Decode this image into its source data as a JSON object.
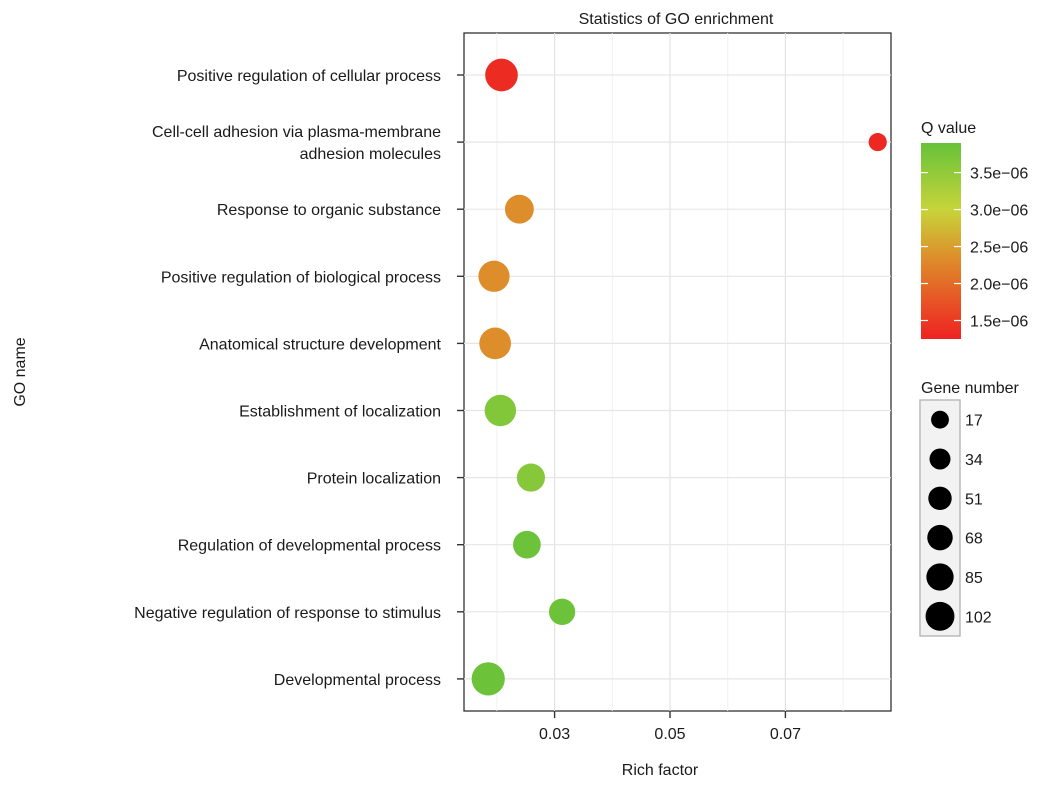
{
  "chart_data": {
    "type": "scatter",
    "title": "Statistics of GO enrichment",
    "xlabel": "Rich factor",
    "ylabel": "GO name",
    "xlim": [
      0.0143,
      0.0883
    ],
    "xticks": [
      {
        "value": 0.03,
        "label": "0.03"
      },
      {
        "value": 0.05,
        "label": "0.05"
      },
      {
        "value": 0.07,
        "label": "0.07"
      }
    ],
    "grid": true,
    "categories": [
      [
        "Positive regulation of cellular process"
      ],
      [
        "Cell-cell adhesion via plasma-membrane",
        "adhesion molecules"
      ],
      [
        "Response to organic substance"
      ],
      [
        "Positive regulation of biological process"
      ],
      [
        "Anatomical structure development"
      ],
      [
        "Establishment of localization"
      ],
      [
        "Protein localization"
      ],
      [
        "Regulation of developmental process"
      ],
      [
        "Negative regulation of response to stimulus"
      ],
      [
        "Developmental process"
      ]
    ],
    "points": [
      {
        "rich_factor": 0.0208,
        "gene_number": 90,
        "q_value": 1.35e-06
      },
      {
        "rich_factor": 0.086,
        "gene_number": 8,
        "q_value": 1.3e-06
      },
      {
        "rich_factor": 0.0239,
        "gene_number": 60,
        "q_value": 2.35e-06
      },
      {
        "rich_factor": 0.0195,
        "gene_number": 78,
        "q_value": 2.35e-06
      },
      {
        "rich_factor": 0.0197,
        "gene_number": 82,
        "q_value": 2.35e-06
      },
      {
        "rich_factor": 0.0206,
        "gene_number": 80,
        "q_value": 3.65e-06
      },
      {
        "rich_factor": 0.0259,
        "gene_number": 55,
        "q_value": 3.6e-06
      },
      {
        "rich_factor": 0.0252,
        "gene_number": 52,
        "q_value": 3.85e-06
      },
      {
        "rich_factor": 0.0313,
        "gene_number": 43,
        "q_value": 3.85e-06
      },
      {
        "rich_factor": 0.0185,
        "gene_number": 95,
        "q_value": 3.85e-06
      }
    ],
    "color_legend": {
      "title": "Q value",
      "min": 1.25e-06,
      "max": 3.9e-06,
      "ticks": [
        {
          "value": 3.5e-06,
          "label": "3.5e−06"
        },
        {
          "value": 3e-06,
          "label": "3.0e−06"
        },
        {
          "value": 2.5e-06,
          "label": "2.5e−06"
        },
        {
          "value": 2e-06,
          "label": "2.0e−06"
        },
        {
          "value": 1.5e-06,
          "label": "1.5e−06"
        }
      ],
      "colors": [
        "#ee2222",
        "#de8a2a",
        "#c7d43a",
        "#67c23a"
      ]
    },
    "size_legend": {
      "title": "Gene number",
      "items": [
        {
          "value": 17,
          "label": "17"
        },
        {
          "value": 34,
          "label": "34"
        },
        {
          "value": 51,
          "label": "51"
        },
        {
          "value": 68,
          "label": "68"
        },
        {
          "value": 85,
          "label": "85"
        },
        {
          "value": 102,
          "label": "102"
        }
      ]
    }
  }
}
